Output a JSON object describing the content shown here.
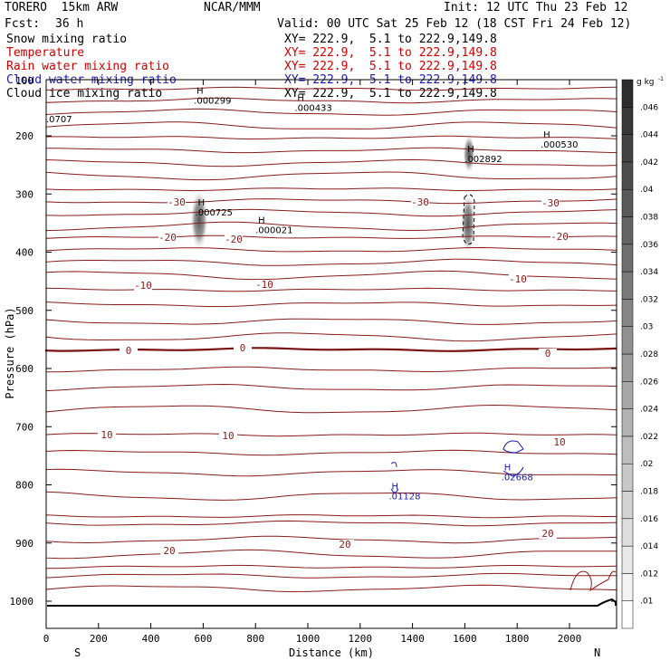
{
  "header": {
    "model": "TORERO  15km ARW",
    "org": "NCAR/MMM",
    "init": "Init: 12 UTC Thu 23 Feb 12",
    "fcst_label": "Fcst:",
    "fcst_value": "36 h",
    "valid": "Valid: 00 UTC Sat 25 Feb 12 (18 CST Fri 24 Feb 12)"
  },
  "legend": [
    {
      "label": "Snow mixing ratio",
      "xy": "XY= 222.9,  5.1 to 222.9,149.8",
      "color": "#000000"
    },
    {
      "label": "Temperature",
      "xy": "XY= 222.9,  5.1 to 222.9,149.8",
      "color": "#cc0000"
    },
    {
      "label": "Rain water mixing ratio",
      "xy": "XY= 222.9,  5.1 to 222.9,149.8",
      "color": "#cc0000"
    },
    {
      "label": "Cloud water mixing ratio",
      "xy": "XY= 222.9,  5.1 to 222.9,149.8",
      "color": "#1a1ab0"
    },
    {
      "label": "Cloud ice mixing ratio",
      "xy": "XY= 222.9,  5.1 to 222.9,149.8",
      "color": "#000000"
    }
  ],
  "chart_data": {
    "type": "cross-section contour",
    "xlabel": "Distance (km)",
    "ylabel": "Pressure (hPa)",
    "x_ticks": [
      0,
      200,
      400,
      600,
      800,
      1000,
      1200,
      1400,
      1600,
      1800,
      2000
    ],
    "xlim": [
      0,
      2180
    ],
    "y_ticks": [
      200,
      300,
      400,
      500,
      600,
      700,
      800,
      900,
      1000
    ],
    "y_top_tick_label": "100",
    "left_end_label": "S",
    "right_end_label": "N",
    "colorbar": {
      "unit": "g kg",
      "unit_exp": "-1",
      "tick_labels": [
        ".01",
        ".012",
        ".014",
        ".016",
        ".018",
        ".02",
        ".022",
        ".024",
        ".026",
        ".028",
        ".03",
        ".032",
        ".034",
        ".036",
        ".038",
        ".04",
        ".042",
        ".044",
        ".046"
      ]
    },
    "isotherm_labels_c": [
      "-30",
      "-30",
      "-30",
      "-20",
      "-20",
      "-20",
      "-10",
      "-10",
      "-10",
      "0",
      "0",
      "0",
      "10",
      "10",
      "10",
      "20",
      "20",
      "20"
    ],
    "extrema": [
      {
        "label": "H",
        "value": ".000299",
        "x_km": 575,
        "p_hpa": 128
      },
      {
        "label": "H",
        "value": ".000433",
        "x_km": 960,
        "p_hpa": 140
      },
      {
        "label": "H",
        "value": ".000530",
        "x_km": 1900,
        "p_hpa": 203
      },
      {
        "label": "H",
        "value": ".002892",
        "x_km": 1610,
        "p_hpa": 228
      },
      {
        "label": "H",
        "value": ".000725",
        "x_km": 580,
        "p_hpa": 320
      },
      {
        "label": "H",
        "value": ".000021",
        "x_km": 810,
        "p_hpa": 350
      },
      {
        "label": "H",
        "value": ".01128",
        "x_km": 1320,
        "p_hpa": 808
      },
      {
        "label": "H",
        "value": ".02668",
        "x_km": 1750,
        "p_hpa": 775
      }
    ],
    "edge_value_label": ".0707"
  }
}
